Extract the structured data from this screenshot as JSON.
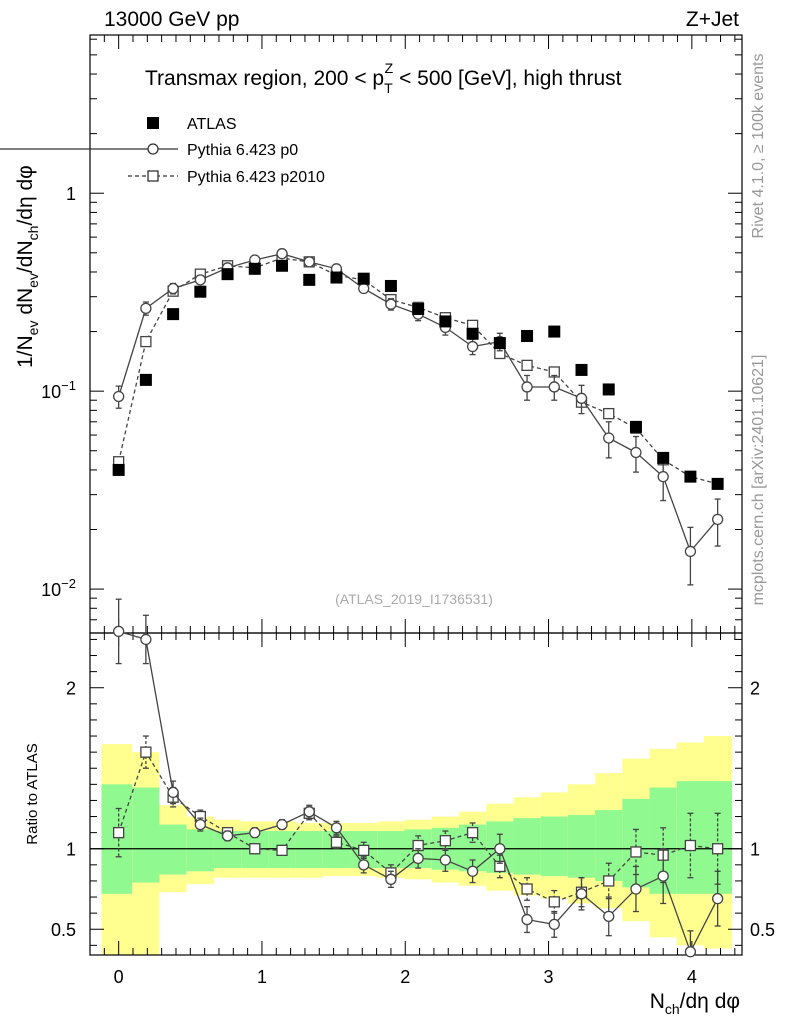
{
  "header": {
    "left_label": "13000 GeV pp",
    "right_label": "Z+Jet",
    "plot_title": "Transmax region, 200 < p_T^Z < 500 [GeV], high thrust",
    "watermark": "(ATLAS_2019_I1736531)",
    "side_label_top": "Rivet 4.1.0, ≥ 100k events",
    "side_label_bottom": "mcplots.cern.ch [arXiv:2401.10621]"
  },
  "chart_data": [
    {
      "type": "scatter",
      "panel": "main",
      "title": "Transmax region, 200 < p_T^Z < 500 [GeV], high thrust",
      "ylabel": "1/N_ev dN_ev/dN_ch/dη dφ",
      "xlabel": "N_ch/dη dφ",
      "yscale": "log",
      "ylim": [
        0.006,
        6.3
      ],
      "xlim": [
        -0.2,
        4.35
      ],
      "y_tick_labels": [
        {
          "value": 0.01,
          "label": "10^-2"
        },
        {
          "value": 0.1,
          "label": "10^-1"
        },
        {
          "value": 1,
          "label": "1"
        }
      ],
      "legend": [
        "ATLAS",
        "Pythia 6.423 p0",
        "Pythia 6.423 p2010"
      ],
      "x": [
        0,
        0.19,
        0.38,
        0.57,
        0.76,
        0.95,
        1.14,
        1.33,
        1.52,
        1.71,
        1.9,
        2.09,
        2.28,
        2.47,
        2.66,
        2.85,
        3.04,
        3.23,
        3.42,
        3.61,
        3.8,
        3.99,
        4.18
      ],
      "series": [
        {
          "name": "ATLAS",
          "style": "filled-square",
          "values": [
            0.04,
            0.114,
            0.245,
            0.318,
            0.39,
            0.415,
            0.43,
            0.365,
            0.375,
            0.37,
            0.34,
            0.26,
            0.225,
            0.195,
            0.175,
            0.19,
            0.2,
            0.128,
            0.102,
            0.066,
            0.046,
            0.037,
            0.034
          ]
        },
        {
          "name": "Pythia 6.423 p0",
          "style": "open-circle-solid",
          "values": [
            0.094,
            0.262,
            0.33,
            0.365,
            0.42,
            0.46,
            0.495,
            0.45,
            0.415,
            0.33,
            0.275,
            0.245,
            0.21,
            0.168,
            0.178,
            0.105,
            0.105,
            0.092,
            0.058,
            0.049,
            0.037,
            0.0155,
            0.0225
          ],
          "errors": [
            0.012,
            0.02,
            0.02,
            0.01,
            0.01,
            0.01,
            0.01,
            0.01,
            0.01,
            0.015,
            0.018,
            0.018,
            0.018,
            0.015,
            0.018,
            0.015,
            0.015,
            0.015,
            0.012,
            0.01,
            0.009,
            0.005,
            0.006
          ]
        },
        {
          "name": "Pythia 6.423 p2010",
          "style": "open-square-dashed",
          "values": [
            0.044,
            0.178,
            0.32,
            0.39,
            0.43,
            0.42,
            0.47,
            0.45,
            0.385,
            0.365,
            0.29,
            0.265,
            0.235,
            0.215,
            0.155,
            0.135,
            0.125,
            0.088,
            0.077,
            0.065,
            0.045,
            0.037,
            0.034
          ]
        }
      ]
    },
    {
      "type": "scatter",
      "panel": "ratio",
      "ylabel": "Ratio to ATLAS",
      "xlabel": "N_ch/dη dφ",
      "ylim": [
        0.34,
        2.34
      ],
      "xlim": [
        -0.2,
        4.35
      ],
      "y_tick_labels": [
        "0.5",
        "1",
        "2"
      ],
      "x_tick_labels": [
        "0",
        "1",
        "2",
        "3",
        "4"
      ],
      "reference_line": 1,
      "x": [
        0,
        0.19,
        0.38,
        0.57,
        0.76,
        0.95,
        1.14,
        1.33,
        1.52,
        1.71,
        1.9,
        2.09,
        2.28,
        2.47,
        2.66,
        2.85,
        3.04,
        3.23,
        3.42,
        3.61,
        3.8,
        3.99,
        4.18
      ],
      "uncertainty_bands": {
        "bin_edges": [
          -0.12,
          0.095,
          0.285,
          0.475,
          0.665,
          0.855,
          1.045,
          1.235,
          1.425,
          1.615,
          1.805,
          1.995,
          2.185,
          2.375,
          2.565,
          2.755,
          2.945,
          3.135,
          3.325,
          3.515,
          3.705,
          3.895,
          4.085,
          4.28
        ],
        "stat_colour": "#90f990",
        "total_colour": "#ffff90",
        "inner_low": [
          0.72,
          0.79,
          0.84,
          0.86,
          0.88,
          0.88,
          0.88,
          0.88,
          0.88,
          0.88,
          0.88,
          0.88,
          0.87,
          0.86,
          0.85,
          0.84,
          0.83,
          0.82,
          0.8,
          0.76,
          0.72,
          0.72,
          0.72
        ],
        "inner_high": [
          1.4,
          1.38,
          1.15,
          1.12,
          1.11,
          1.11,
          1.11,
          1.11,
          1.11,
          1.11,
          1.11,
          1.12,
          1.13,
          1.15,
          1.17,
          1.19,
          1.2,
          1.21,
          1.24,
          1.31,
          1.38,
          1.42,
          1.42
        ],
        "outer_low": [
          0.34,
          0.34,
          0.73,
          0.78,
          0.82,
          0.82,
          0.82,
          0.82,
          0.83,
          0.83,
          0.82,
          0.81,
          0.79,
          0.77,
          0.74,
          0.71,
          0.69,
          0.66,
          0.63,
          0.55,
          0.45,
          0.4,
          0.38
        ],
        "outer_high": [
          1.65,
          1.6,
          1.27,
          1.2,
          1.18,
          1.17,
          1.17,
          1.16,
          1.16,
          1.16,
          1.17,
          1.18,
          1.2,
          1.23,
          1.28,
          1.32,
          1.35,
          1.4,
          1.47,
          1.56,
          1.62,
          1.66,
          1.7
        ]
      },
      "series": [
        {
          "name": "Pythia 6.423 p0",
          "style": "open-circle-solid",
          "values": [
            2.35,
            2.3,
            1.35,
            1.15,
            1.08,
            1.1,
            1.15,
            1.23,
            1.13,
            0.9,
            0.81,
            0.94,
            0.93,
            0.86,
            1.0,
            0.56,
            0.53,
            0.72,
            0.58,
            0.75,
            0.83,
            0.36,
            0.69
          ],
          "errors": [
            0.2,
            0.15,
            0.07,
            0.04,
            0.03,
            0.03,
            0.03,
            0.04,
            0.04,
            0.05,
            0.05,
            0.06,
            0.07,
            0.07,
            0.09,
            0.08,
            0.08,
            0.1,
            0.12,
            0.14,
            0.17,
            0.13,
            0.17
          ]
        },
        {
          "name": "Pythia 6.423 p2010",
          "style": "open-square-dashed",
          "values": [
            1.1,
            1.6,
            1.32,
            1.2,
            1.1,
            1.0,
            0.99,
            1.22,
            1.04,
            0.99,
            0.85,
            1.02,
            1.05,
            1.1,
            0.89,
            0.75,
            0.67,
            0.73,
            0.8,
            0.98,
            0.96,
            1.02,
            1.0
          ],
          "errors": [
            0.15,
            0.1,
            0.06,
            0.04,
            0.03,
            0.03,
            0.03,
            0.04,
            0.04,
            0.05,
            0.05,
            0.06,
            0.06,
            0.06,
            0.07,
            0.07,
            0.07,
            0.09,
            0.11,
            0.14,
            0.17,
            0.2,
            0.22
          ]
        }
      ]
    }
  ]
}
